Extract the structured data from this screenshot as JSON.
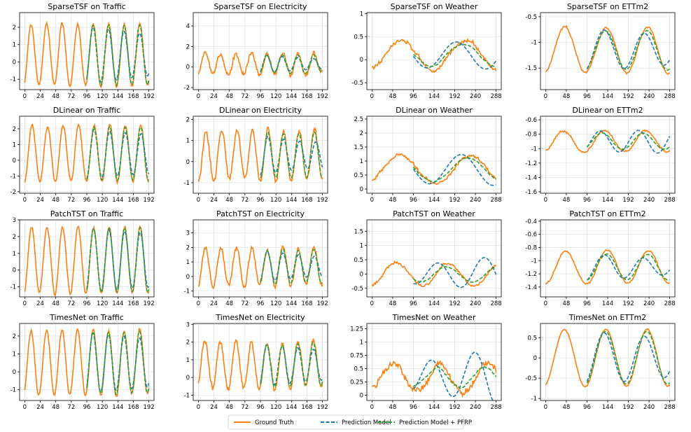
{
  "figure": {
    "rows": 4,
    "cols": 4
  },
  "chart_data": [
    {
      "type": "line",
      "title": "SparseTSF on Traffic",
      "xticks": [
        0,
        24,
        48,
        72,
        96,
        120,
        144,
        168,
        192
      ],
      "yticks": [
        -1,
        0,
        1,
        2
      ],
      "ylim": [
        -1.6,
        2.85
      ],
      "xlim": [
        -8,
        200
      ],
      "input_len": 96,
      "horizon": 96,
      "amp": 1.8,
      "offset": 0.4,
      "period": 24,
      "noise": 0.12,
      "pred_dev": 0.4,
      "pfrp_dev": 0.12,
      "seed": 11
    },
    {
      "type": "line",
      "title": "SparseTSF on Electricity",
      "xticks": [
        0,
        24,
        48,
        72,
        96,
        120,
        144,
        168,
        192
      ],
      "yticks": [
        -2,
        0,
        2,
        4
      ],
      "ylim": [
        -2.2,
        5.3
      ],
      "xlim": [
        -8,
        200
      ],
      "input_len": 96,
      "horizon": 96,
      "amp": 1.0,
      "offset": 0.3,
      "period": 24,
      "noise": 0.3,
      "pred_dev": 0.35,
      "pfrp_dev": 0.18,
      "seed": 12
    },
    {
      "type": "line",
      "title": "SparseTSF on Weather",
      "xticks": [
        0,
        48,
        96,
        144,
        192,
        240,
        288
      ],
      "yticks": [
        -0.5,
        0,
        0.5,
        1.0
      ],
      "ylim": [
        -0.65,
        1.02
      ],
      "xlim": [
        -12,
        300
      ],
      "input_len": 96,
      "horizon": 192,
      "amp": 0.3,
      "offset": 0.1,
      "period": 150,
      "noise": 0.06,
      "pred_dev": 0.25,
      "pfrp_dev": 0.1,
      "seed": 13
    },
    {
      "type": "line",
      "title": "SparseTSF on ETTm2",
      "xticks": [
        0,
        48,
        96,
        144,
        192,
        240,
        288
      ],
      "yticks": [
        -1.5,
        -1.0,
        -0.5
      ],
      "ylim": [
        -1.92,
        -0.42
      ],
      "xlim": [
        -12,
        300
      ],
      "input_len": 96,
      "horizon": 192,
      "amp": 0.45,
      "offset": -1.15,
      "period": 96,
      "noise": 0.03,
      "pred_dev": 0.18,
      "pfrp_dev": 0.08,
      "seed": 14
    },
    {
      "type": "line",
      "title": "DLinear on Traffic",
      "xticks": [
        0,
        24,
        48,
        72,
        96,
        120,
        144,
        168,
        192
      ],
      "yticks": [
        -2,
        -1,
        0,
        1,
        2
      ],
      "ylim": [
        -2.1,
        2.8
      ],
      "xlim": [
        -8,
        200
      ],
      "input_len": 96,
      "horizon": 96,
      "amp": 1.8,
      "offset": 0.4,
      "period": 24,
      "noise": 0.12,
      "pred_dev": 0.4,
      "pfrp_dev": 0.12,
      "seed": 21
    },
    {
      "type": "line",
      "title": "DLinear on Electricity",
      "xticks": [
        0,
        24,
        48,
        72,
        96,
        120,
        144,
        168,
        192
      ],
      "yticks": [
        -1,
        0,
        1,
        2
      ],
      "ylim": [
        -1.5,
        2.15
      ],
      "xlim": [
        -8,
        200
      ],
      "input_len": 96,
      "horizon": 96,
      "amp": 1.2,
      "offset": 0.3,
      "period": 24,
      "noise": 0.18,
      "pred_dev": 0.5,
      "pfrp_dev": 0.15,
      "seed": 22
    },
    {
      "type": "line",
      "title": "DLinear on Weather",
      "xticks": [
        0,
        48,
        96,
        144,
        192,
        240,
        288
      ],
      "yticks": [
        0.0,
        0.5,
        1.0,
        1.5,
        2.0,
        2.5
      ],
      "ylim": [
        -0.15,
        2.6
      ],
      "xlim": [
        -12,
        300
      ],
      "input_len": 96,
      "horizon": 192,
      "amp": 0.5,
      "offset": 0.7,
      "period": 160,
      "noise": 0.08,
      "pred_dev": 0.35,
      "pfrp_dev": 0.12,
      "seed": 23
    },
    {
      "type": "line",
      "title": "DLinear on ETTm2",
      "xticks": [
        0,
        48,
        96,
        144,
        192,
        240,
        288
      ],
      "yticks": [
        -1.6,
        -1.4,
        -1.2,
        -1.0,
        -0.8,
        -0.6
      ],
      "ylim": [
        -1.62,
        -0.55
      ],
      "xlim": [
        -12,
        300
      ],
      "input_len": 96,
      "horizon": 192,
      "amp": 0.15,
      "offset": -0.9,
      "period": 96,
      "noise": 0.02,
      "pred_dev": 0.15,
      "pfrp_dev": 0.06,
      "seed": 24
    },
    {
      "type": "line",
      "title": "PatchTST on Traffic",
      "xticks": [
        0,
        24,
        48,
        72,
        96,
        120,
        144,
        168,
        192
      ],
      "yticks": [
        -1,
        0,
        1,
        2,
        3
      ],
      "ylim": [
        -1.6,
        3.0
      ],
      "xlim": [
        -8,
        200
      ],
      "input_len": 96,
      "horizon": 96,
      "amp": 2.0,
      "offset": 0.6,
      "period": 24,
      "noise": 0.12,
      "pred_dev": 0.25,
      "pfrp_dev": 0.1,
      "seed": 31
    },
    {
      "type": "line",
      "title": "PatchTST on Electricity",
      "xticks": [
        0,
        24,
        48,
        72,
        96,
        120,
        144,
        168,
        192
      ],
      "yticks": [
        -1,
        0,
        1,
        2,
        3
      ],
      "ylim": [
        -1.4,
        3.9
      ],
      "xlim": [
        -8,
        200
      ],
      "input_len": 96,
      "horizon": 96,
      "amp": 1.3,
      "offset": 0.7,
      "period": 24,
      "noise": 0.25,
      "pred_dev": 0.45,
      "pfrp_dev": 0.15,
      "seed": 32
    },
    {
      "type": "line",
      "title": "PatchTST on Weather",
      "xticks": [
        0,
        48,
        96,
        144,
        192,
        240,
        288
      ],
      "yticks": [
        -0.5,
        0.0,
        0.5,
        1.0,
        1.5
      ],
      "ylim": [
        -0.8,
        1.9
      ],
      "xlim": [
        -12,
        300
      ],
      "input_len": 96,
      "horizon": 192,
      "amp": 0.4,
      "offset": 0.0,
      "period": 120,
      "noise": 0.07,
      "pred_dev": 0.6,
      "pfrp_dev": 0.15,
      "seed": 33
    },
    {
      "type": "line",
      "title": "PatchTST on ETTm2",
      "xticks": [
        0,
        48,
        96,
        144,
        192,
        240,
        288
      ],
      "yticks": [
        -1.4,
        -1.2,
        -1.0,
        -0.8,
        -0.6,
        -0.4
      ],
      "ylim": [
        -1.55,
        -0.38
      ],
      "xlim": [
        -12,
        300
      ],
      "input_len": 96,
      "horizon": 192,
      "amp": 0.25,
      "offset": -1.1,
      "period": 96,
      "noise": 0.02,
      "pred_dev": 0.15,
      "pfrp_dev": 0.06,
      "seed": 34
    },
    {
      "type": "line",
      "title": "TimesNet on Traffic",
      "xticks": [
        0,
        24,
        48,
        72,
        96,
        120,
        144,
        168,
        192
      ],
      "yticks": [
        -1,
        0,
        1,
        2
      ],
      "ylim": [
        -1.6,
        2.7
      ],
      "xlim": [
        -8,
        200
      ],
      "input_len": 96,
      "horizon": 96,
      "amp": 1.8,
      "offset": 0.5,
      "period": 24,
      "noise": 0.12,
      "pred_dev": 0.3,
      "pfrp_dev": 0.12,
      "seed": 41
    },
    {
      "type": "line",
      "title": "TimesNet on Electricity",
      "xticks": [
        0,
        24,
        48,
        72,
        96,
        120,
        144,
        168,
        192
      ],
      "yticks": [
        -1,
        0,
        1,
        2,
        3
      ],
      "ylim": [
        -1.3,
        3.05
      ],
      "xlim": [
        -8,
        200
      ],
      "input_len": 96,
      "horizon": 96,
      "amp": 1.3,
      "offset": 0.7,
      "period": 24,
      "noise": 0.22,
      "pred_dev": 0.3,
      "pfrp_dev": 0.15,
      "seed": 42
    },
    {
      "type": "line",
      "title": "TimesNet on Weather",
      "xticks": [
        0,
        48,
        96,
        144,
        192,
        240,
        288
      ],
      "yticks": [
        0.0,
        0.25,
        0.5,
        0.75,
        1.0,
        1.25
      ],
      "ylim": [
        -0.1,
        1.35
      ],
      "xlim": [
        -12,
        300
      ],
      "input_len": 96,
      "horizon": 192,
      "amp": 0.25,
      "offset": 0.35,
      "period": 110,
      "noise": 0.09,
      "pred_dev": 0.45,
      "pfrp_dev": 0.12,
      "seed": 43
    },
    {
      "type": "line",
      "title": "TimesNet on ETTm2",
      "xticks": [
        0,
        48,
        96,
        144,
        192,
        240,
        288
      ],
      "yticks": [
        -1.0,
        -0.5,
        0.0,
        0.5
      ],
      "ylim": [
        -1.05,
        0.85
      ],
      "xlim": [
        -12,
        300
      ],
      "input_len": 96,
      "horizon": 192,
      "amp": 0.7,
      "offset": 0.0,
      "period": 96,
      "noise": 0.02,
      "pred_dev": 0.25,
      "pfrp_dev": 0.06,
      "seed": 44
    }
  ],
  "legend": {
    "items": [
      {
        "label": "Ground Truth",
        "color": "#ff7f0e",
        "dash": "solid"
      },
      {
        "label": "Prediction Model",
        "color": "#1f77b4",
        "dash": "dashed"
      },
      {
        "label": "Prediction Model + PFRP",
        "color": "#2ca02c",
        "dash": "dashed"
      }
    ],
    "placement": "bottom-center"
  },
  "colors": {
    "ground_truth": "#ff7f0e",
    "prediction": "#1f77b4",
    "pfrp": "#2ca02c",
    "grid": "#e0e0e0",
    "axis": "#000000"
  }
}
